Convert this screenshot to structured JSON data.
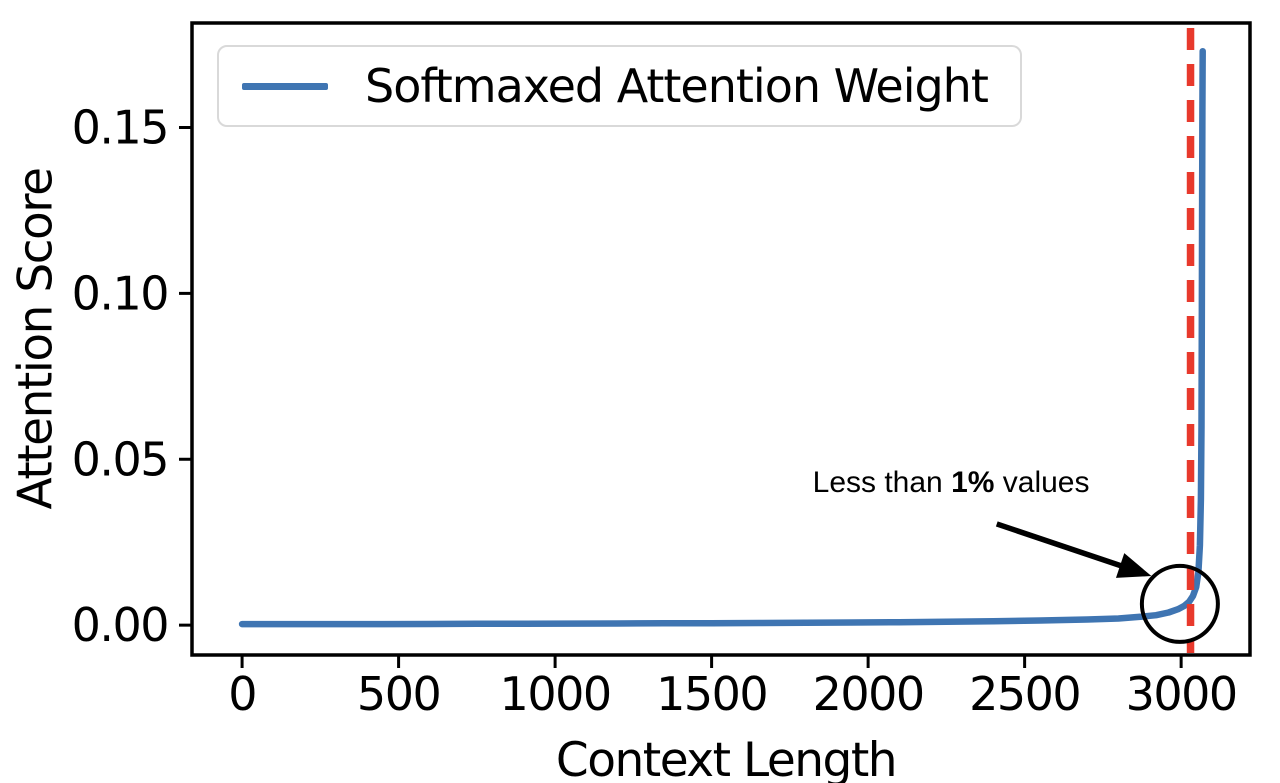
{
  "chart_data": {
    "type": "line",
    "title": "",
    "xlabel": "Context Length",
    "ylabel": "Attention Score",
    "xlim": [
      -160,
      3220
    ],
    "ylim": [
      -0.009,
      0.1815
    ],
    "xticks": [
      0,
      500,
      1000,
      1500,
      2000,
      2500,
      3000
    ],
    "yticks": [
      0,
      0.05,
      0.1,
      0.15
    ],
    "ytick_labels": [
      "0.00",
      "0.05",
      "0.10",
      "0.15"
    ],
    "grid": false,
    "legend": {
      "position": "upper left",
      "label": "Softmaxed Attention Weight"
    },
    "colors": {
      "series": "#3f75b2",
      "vline": "#e8392c",
      "spine": "#000000",
      "text": "#000000",
      "annotation": "#000000",
      "legend_border": "#d9d9d9"
    },
    "series": [
      {
        "name": "Softmaxed Attention Weight",
        "color": "#3f75b2",
        "points": [
          [
            0,
            0.0003
          ],
          [
            150,
            0.0003
          ],
          [
            300,
            0.0003
          ],
          [
            450,
            0.0003
          ],
          [
            600,
            0.00035
          ],
          [
            750,
            0.0004
          ],
          [
            900,
            0.0004
          ],
          [
            1050,
            0.00045
          ],
          [
            1200,
            0.0005
          ],
          [
            1350,
            0.00055
          ],
          [
            1500,
            0.0006
          ],
          [
            1650,
            0.00065
          ],
          [
            1800,
            0.0007
          ],
          [
            1950,
            0.0008
          ],
          [
            2100,
            0.0009
          ],
          [
            2250,
            0.001
          ],
          [
            2400,
            0.0012
          ],
          [
            2550,
            0.0014
          ],
          [
            2700,
            0.0017
          ],
          [
            2800,
            0.002
          ],
          [
            2870,
            0.0025
          ],
          [
            2920,
            0.003
          ],
          [
            2960,
            0.0038
          ],
          [
            2990,
            0.0048
          ],
          [
            3010,
            0.0058
          ],
          [
            3025,
            0.007
          ],
          [
            3038,
            0.0088
          ],
          [
            3048,
            0.0115
          ],
          [
            3055,
            0.016
          ],
          [
            3060,
            0.024
          ],
          [
            3063,
            0.038
          ],
          [
            3065,
            0.06
          ],
          [
            3066,
            0.09
          ],
          [
            3067,
            0.125
          ],
          [
            3068,
            0.155
          ],
          [
            3068.5,
            0.168
          ],
          [
            3069,
            0.173
          ]
        ]
      }
    ],
    "vline": {
      "x": 3030,
      "color": "#e8392c",
      "style": "dashed"
    },
    "annotation": {
      "prefix": "Less than ",
      "bold": "1%",
      "suffix": " values",
      "full_text": "Less than 1% values",
      "text_center": {
        "x": 2265,
        "y": 0.0435
      },
      "arrow_from": {
        "x": 2411,
        "y": 0.0305
      },
      "arrow_to": {
        "x": 2905,
        "y": 0.0148
      },
      "circle": {
        "x": 2996,
        "y": 0.0064,
        "radius_px": 38
      }
    }
  }
}
